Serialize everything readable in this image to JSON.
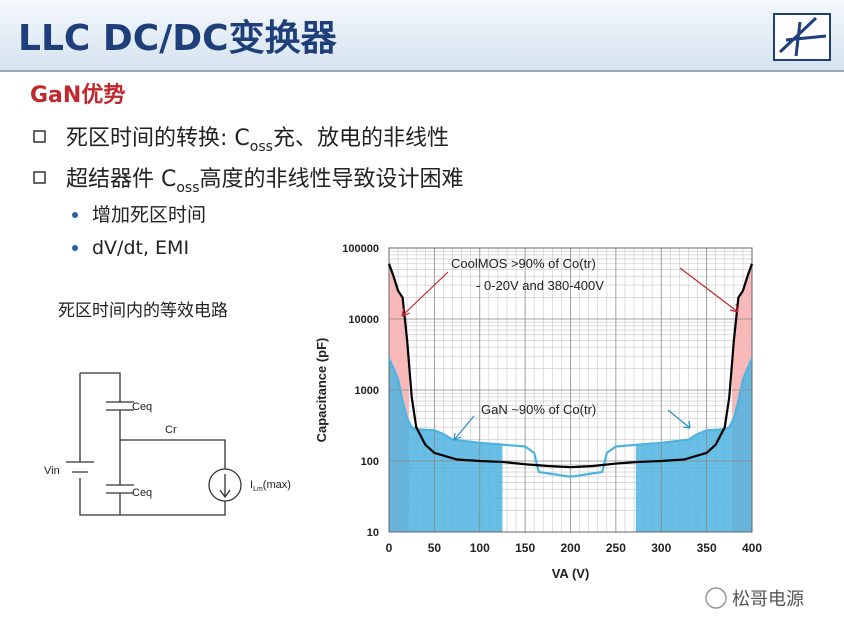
{
  "header": {
    "title": "LLC DC/DC变换器"
  },
  "section": "GaN优势",
  "bullets": [
    {
      "before": "死区时间的转换: C",
      "sub": "oss",
      "after": "充、放电的非线性"
    },
    {
      "before": "超结器件 C",
      "sub": "oss",
      "after": "高度的非线性导致设计困难"
    }
  ],
  "sub_bullets": [
    "增加死区时间",
    "dV/dt, EMI"
  ],
  "circuit": {
    "caption": "死区时间内的等效电路",
    "vin": "Vin",
    "ceq_top": "Ceq",
    "ceq_bottom": "Ceq",
    "cr": "Cr",
    "ilm": "I",
    "ilm_sub": "Lm",
    "ilm_after": "(max)"
  },
  "watermark": "松哥电源",
  "chart_data": {
    "type": "line",
    "x_label": "VA (V)",
    "y_label": "Capacitance (pF)",
    "log_y": true,
    "grid": true,
    "xlim": [
      0,
      400
    ],
    "ylim": [
      10,
      100000
    ],
    "xticks": [
      0,
      50,
      100,
      150,
      200,
      250,
      300,
      350,
      400
    ],
    "yticks": [
      10,
      100,
      1000,
      10000,
      100000
    ],
    "annotations": [
      "CoolMOS >90% of Co(tr)",
      "- 0-20V and 380-400V",
      "GaN ~90% of Co(tr)"
    ],
    "series": [
      {
        "name": "CoolMOS",
        "color": "#000000",
        "shade_color": "#f6b1b1",
        "shade": [
          [
            0,
            22
          ],
          [
            378,
            400
          ]
        ],
        "x": [
          0,
          5,
          10,
          15,
          20,
          25,
          30,
          40,
          50,
          75,
          100,
          125,
          150,
          175,
          200,
          225,
          250,
          275,
          300,
          325,
          350,
          360,
          370,
          375,
          380,
          385,
          390,
          395,
          400
        ],
        "values": [
          60000,
          40000,
          25000,
          20000,
          5000,
          800,
          300,
          170,
          130,
          105,
          100,
          97,
          90,
          85,
          82,
          85,
          92,
          97,
          100,
          105,
          130,
          170,
          300,
          800,
          5000,
          20000,
          25000,
          40000,
          60000
        ]
      },
      {
        "name": "GaN",
        "color": "#4fb3e0",
        "shade_color": "#4fb3e0",
        "shade": [
          [
            0,
            125
          ],
          [
            272,
            400
          ]
        ],
        "x": [
          0,
          5,
          10,
          15,
          20,
          25,
          30,
          50,
          60,
          70,
          100,
          125,
          150,
          160,
          165,
          200,
          235,
          240,
          250,
          275,
          300,
          330,
          340,
          350,
          370,
          375,
          380,
          385,
          390,
          395,
          400
        ],
        "values": [
          2800,
          2000,
          1400,
          700,
          400,
          300,
          280,
          270,
          240,
          200,
          180,
          170,
          160,
          130,
          70,
          60,
          70,
          130,
          160,
          170,
          180,
          200,
          240,
          270,
          280,
          300,
          400,
          700,
          1400,
          2000,
          2800
        ]
      }
    ]
  }
}
